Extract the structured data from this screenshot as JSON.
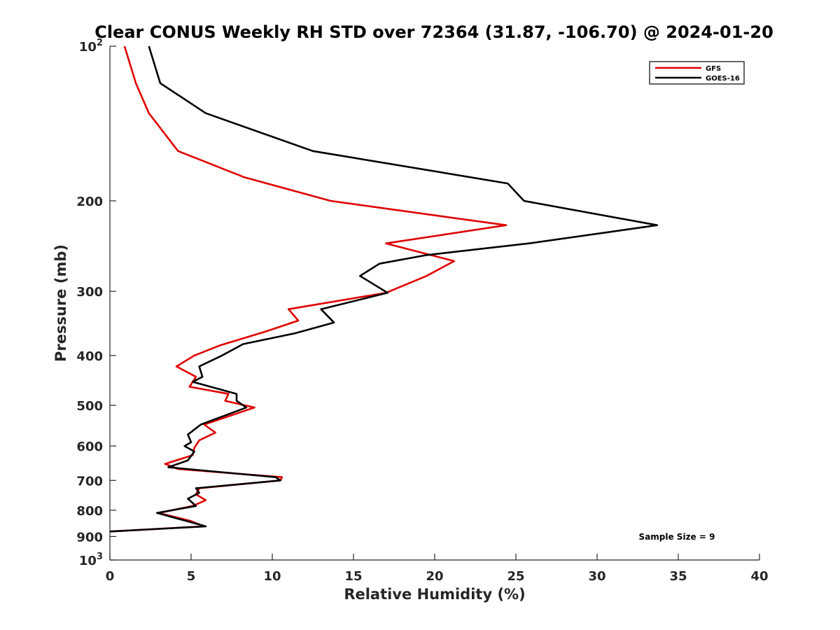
{
  "chart_data": {
    "type": "line",
    "title": "Clear CONUS Weekly RH STD over 72364 (31.87, -106.70) @ 2024-01-20",
    "xlabel": "Relative Humidity (%)",
    "ylabel": "Pressure (mb)",
    "xlim": [
      0,
      40
    ],
    "ylim": [
      100,
      1000
    ],
    "y_scale": "log",
    "y_reversed": true,
    "grid": false,
    "legend_position": "top-right",
    "x_ticks": [
      "0",
      "5",
      "10",
      "15",
      "20",
      "25",
      "30",
      "35",
      "40"
    ],
    "x_tick_values": [
      0,
      5,
      10,
      15,
      20,
      25,
      30,
      35,
      40
    ],
    "y_ticks": [
      {
        "value": 100,
        "base": "10",
        "exp": "2"
      },
      {
        "value": 200,
        "label": "200"
      },
      {
        "value": 300,
        "label": "300"
      },
      {
        "value": 400,
        "label": "400"
      },
      {
        "value": 500,
        "label": "500"
      },
      {
        "value": 600,
        "label": "600"
      },
      {
        "value": 700,
        "label": "700"
      },
      {
        "value": 800,
        "label": "800"
      },
      {
        "value": 900,
        "label": "900"
      },
      {
        "value": 1000,
        "base": "10",
        "exp": "3"
      }
    ],
    "series": [
      {
        "name": "GFS",
        "color": "#e00000",
        "points": [
          [
            0.9,
            100
          ],
          [
            1.6,
            118
          ],
          [
            2.4,
            135
          ],
          [
            4.2,
            160
          ],
          [
            8.3,
            180
          ],
          [
            13.6,
            200
          ],
          [
            24.4,
            223
          ],
          [
            17.0,
            242
          ],
          [
            21.2,
            262
          ],
          [
            19.5,
            280
          ],
          [
            17.0,
            302
          ],
          [
            11.0,
            325
          ],
          [
            11.6,
            342
          ],
          [
            9.5,
            360
          ],
          [
            6.8,
            382
          ],
          [
            5.2,
            400
          ],
          [
            4.1,
            420
          ],
          [
            5.3,
            440
          ],
          [
            4.9,
            460
          ],
          [
            7.3,
            475
          ],
          [
            7.1,
            490
          ],
          [
            8.9,
            505
          ],
          [
            5.8,
            545
          ],
          [
            6.5,
            565
          ],
          [
            5.5,
            585
          ],
          [
            5.2,
            605
          ],
          [
            5.1,
            625
          ],
          [
            3.4,
            650
          ],
          [
            4.2,
            665
          ],
          [
            10.6,
            690
          ],
          [
            10.5,
            700
          ],
          [
            5.5,
            725
          ],
          [
            5.3,
            745
          ],
          [
            5.9,
            765
          ],
          [
            5.1,
            785
          ],
          [
            3.0,
            810
          ],
          [
            5.0,
            840
          ],
          [
            5.8,
            860
          ],
          [
            0.0,
            880
          ]
        ]
      },
      {
        "name": "GOES-16",
        "color": "#000000",
        "points": [
          [
            2.4,
            100
          ],
          [
            3.1,
            118
          ],
          [
            5.9,
            135
          ],
          [
            12.5,
            160
          ],
          [
            24.5,
            185
          ],
          [
            25.5,
            200
          ],
          [
            33.7,
            223
          ],
          [
            25.8,
            242
          ],
          [
            19.5,
            255
          ],
          [
            16.6,
            265
          ],
          [
            15.4,
            280
          ],
          [
            17.1,
            302
          ],
          [
            13.0,
            325
          ],
          [
            13.8,
            345
          ],
          [
            11.4,
            362
          ],
          [
            8.2,
            380
          ],
          [
            6.9,
            400
          ],
          [
            5.5,
            420
          ],
          [
            5.7,
            440
          ],
          [
            5.1,
            450
          ],
          [
            7.8,
            475
          ],
          [
            7.8,
            490
          ],
          [
            8.4,
            505
          ],
          [
            5.6,
            545
          ],
          [
            4.8,
            570
          ],
          [
            5.0,
            590
          ],
          [
            4.6,
            600
          ],
          [
            5.2,
            615
          ],
          [
            4.8,
            640
          ],
          [
            3.6,
            660
          ],
          [
            10.2,
            690
          ],
          [
            10.5,
            700
          ],
          [
            5.3,
            725
          ],
          [
            5.5,
            740
          ],
          [
            4.8,
            760
          ],
          [
            5.3,
            785
          ],
          [
            2.9,
            810
          ],
          [
            5.9,
            860
          ],
          [
            0.0,
            880
          ]
        ]
      }
    ],
    "annotations": [
      "Sample Size = 9"
    ]
  }
}
